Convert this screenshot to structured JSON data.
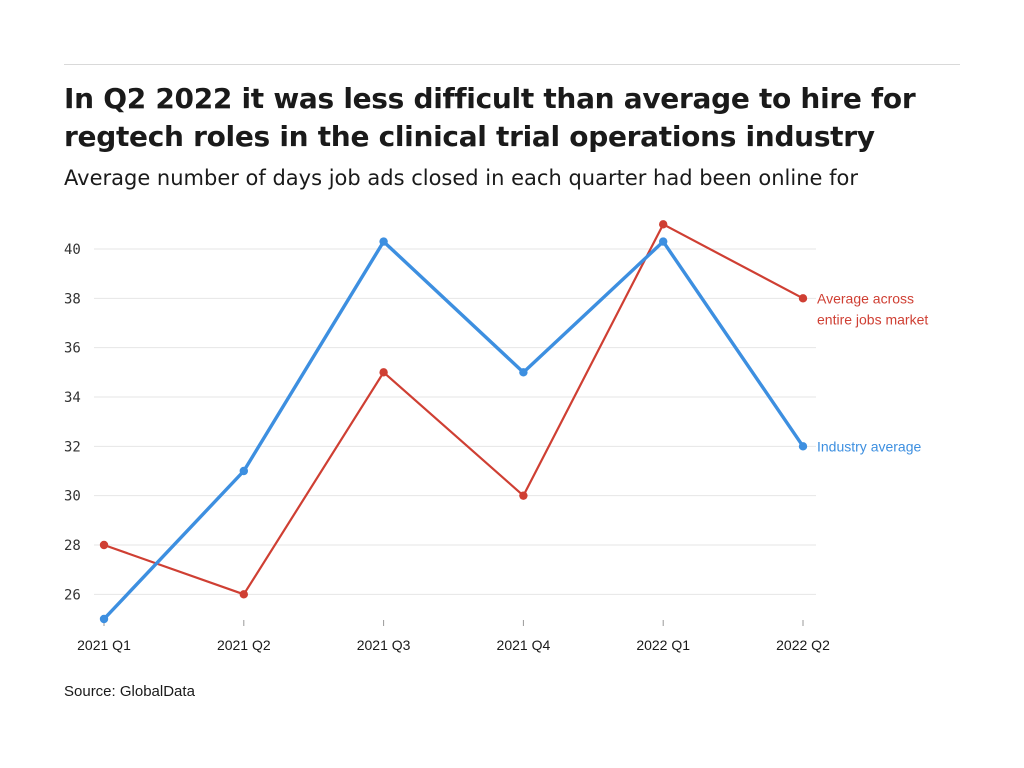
{
  "title": "In Q2 2022 it was less difficult than average to hire for regtech roles in the clinical trial operations industry",
  "subtitle": "Average number of days job ads closed in each quarter had been online for",
  "source": "Source: GlobalData",
  "colors": {
    "industry": "#3d8fe0",
    "market": "#cf3f33",
    "grid": "#e6e6e6",
    "axis": "#999999"
  },
  "chart_data": {
    "type": "line",
    "categories": [
      "2021 Q1",
      "2021 Q2",
      "2021 Q3",
      "2021 Q4",
      "2022 Q1",
      "2022 Q2"
    ],
    "ylim": [
      25,
      41.5
    ],
    "yticks": [
      26,
      28,
      30,
      32,
      34,
      36,
      38,
      40
    ],
    "series": [
      {
        "name": "Average across entire jobs market",
        "label_lines": [
          "Average across",
          "entire jobs market"
        ],
        "values": [
          28,
          26,
          35,
          30,
          41,
          38
        ]
      },
      {
        "name": "Industry average",
        "label_lines": [
          "Industry average"
        ],
        "values": [
          25,
          31,
          40.3,
          35,
          40.3,
          32
        ]
      }
    ],
    "grid": true,
    "xlabel": "",
    "ylabel": ""
  }
}
